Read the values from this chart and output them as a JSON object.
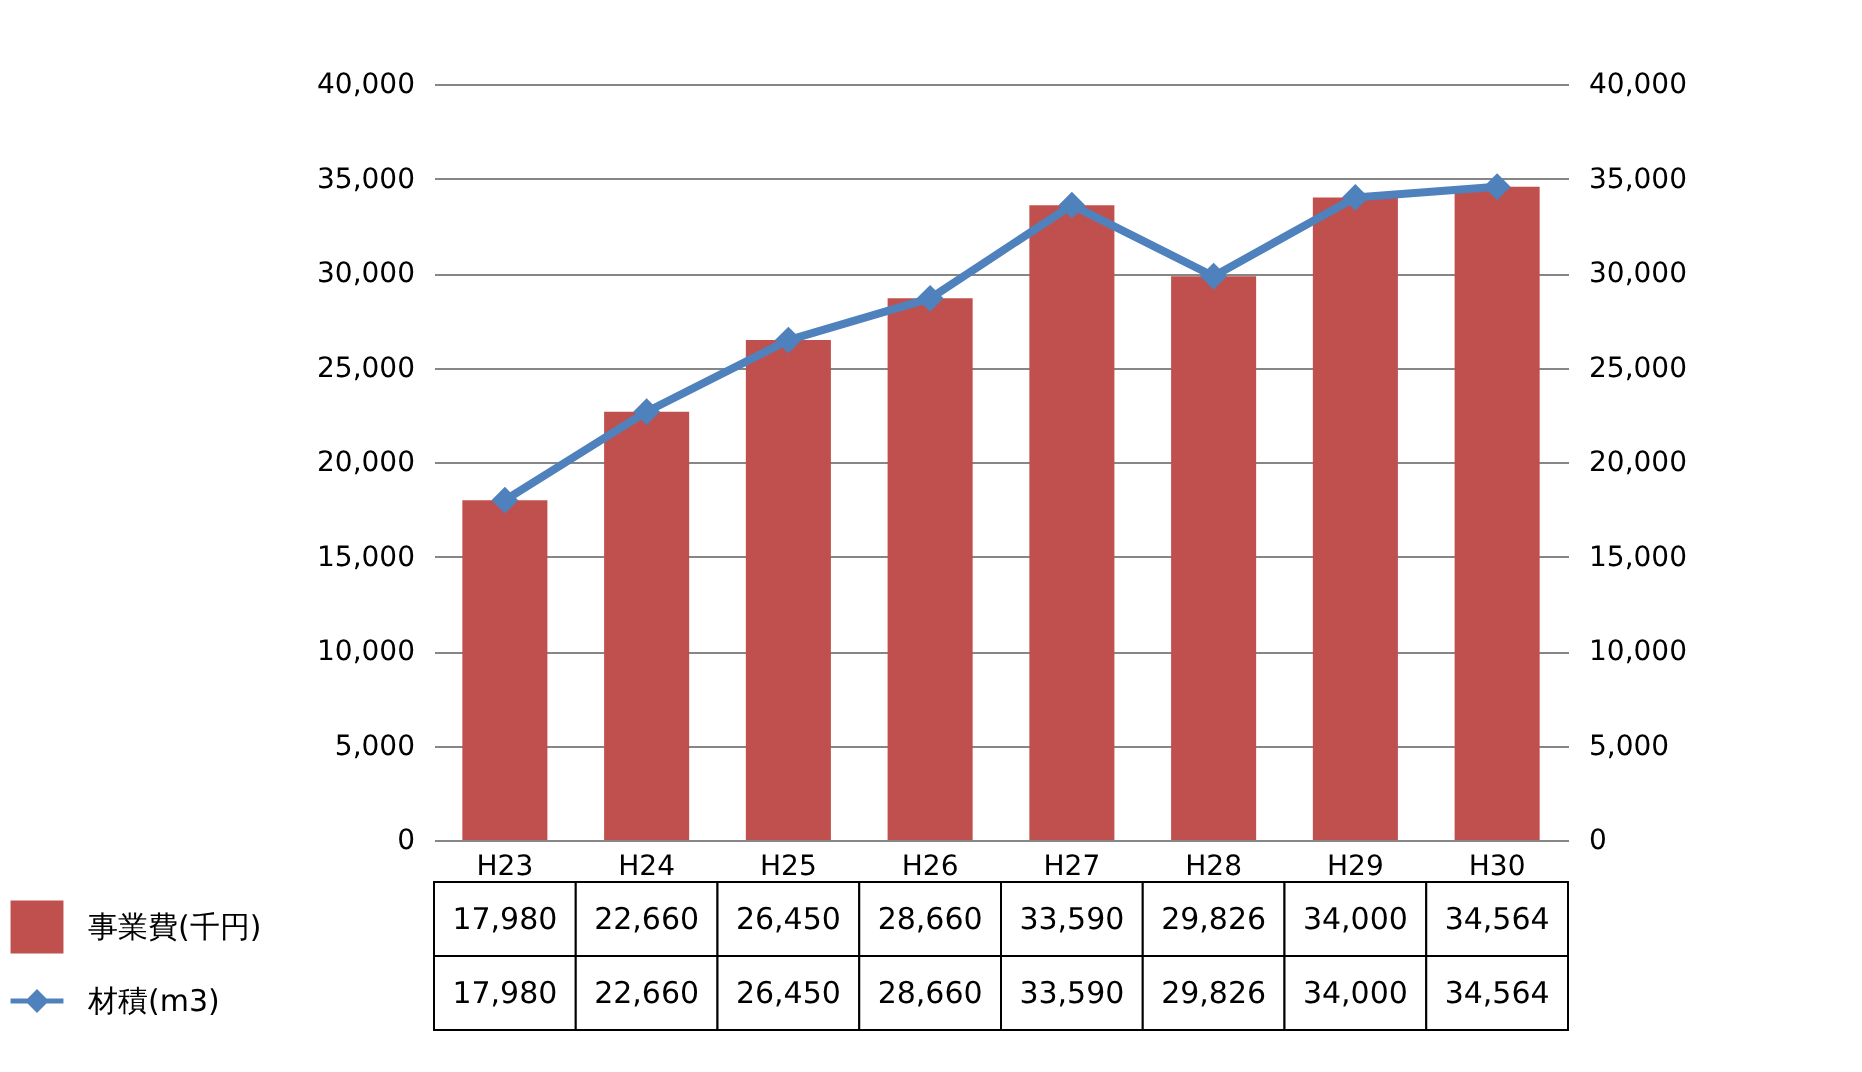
{
  "chart_data": {
    "type": "bar",
    "categories": [
      "H23",
      "H24",
      "H25",
      "H26",
      "H27",
      "H28",
      "H29",
      "H30"
    ],
    "series": [
      {
        "name": "事業費(千円)",
        "color": "#c0504d",
        "values": [
          17980,
          22660,
          26450,
          28660,
          33590,
          29826,
          34000,
          34564
        ],
        "value_labels": [
          "17,980",
          "22,660",
          "26,450",
          "28,660",
          "33,590",
          "29,826",
          "34,000",
          "34,564"
        ]
      },
      {
        "name": "材積(m3)",
        "type": "line",
        "axis": "y2",
        "color": "#4f81bd",
        "marker": "diamond",
        "values": [
          17980,
          22660,
          26450,
          28660,
          33590,
          29826,
          34000,
          34564
        ],
        "value_labels": [
          "17,980",
          "22,660",
          "26,450",
          "28,660",
          "33,590",
          "29,826",
          "34,000",
          "34,564"
        ]
      }
    ],
    "ylim": [
      0,
      40000
    ],
    "yticks": [
      {
        "value": 0,
        "label": "0"
      },
      {
        "value": 5000,
        "label": "5,000"
      },
      {
        "value": 10000,
        "label": "10,000"
      },
      {
        "value": 15000,
        "label": "15,000"
      },
      {
        "value": 20000,
        "label": "20,000"
      },
      {
        "value": 25000,
        "label": "25,000"
      },
      {
        "value": 30000,
        "label": "30,000"
      },
      {
        "value": 35000,
        "label": "35,000"
      },
      {
        "value": 40000,
        "label": "40,000"
      }
    ],
    "y2lim": [
      0,
      40000
    ],
    "y2ticks": [
      {
        "value": 0,
        "label": "0"
      },
      {
        "value": 5000,
        "label": "5,000"
      },
      {
        "value": 10000,
        "label": "10,000"
      },
      {
        "value": 15000,
        "label": "15,000"
      },
      {
        "value": 20000,
        "label": "20,000"
      },
      {
        "value": 25000,
        "label": "25,000"
      },
      {
        "value": 30000,
        "label": "30,000"
      },
      {
        "value": 35000,
        "label": "35,000"
      },
      {
        "value": 40000,
        "label": "40,000"
      }
    ],
    "grid": "y",
    "legend": "bottom"
  }
}
